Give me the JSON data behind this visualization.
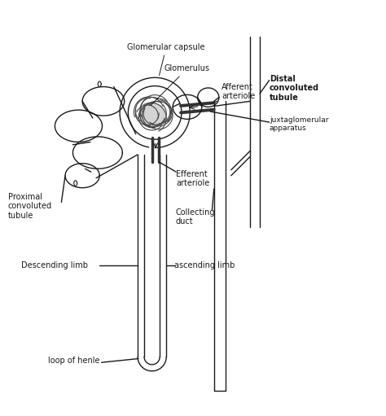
{
  "bg_color": "#ffffff",
  "line_color": "#1a1a1a",
  "figsize": [
    4.74,
    5.11
  ],
  "dpi": 100,
  "labels": {
    "glomerular_capsule": "Glomerular capsule",
    "glomerulus": "Glomerulus",
    "afferent_arteriole": "Afferent\narteriole",
    "distal_convoluted_tubule": "Distal\nconvoluted\ntubule",
    "juxtaglomerular": "juxtaglomerular\napparatus",
    "efferent_arteriole": "Efferent\narteriole",
    "collecting_duct": "Collecting\nduct",
    "proximal_convoluted_tubule": "Proximal\nconvoluted\ntubule",
    "descending_limb": "Descending limb",
    "ascending_limb": "ascending limb",
    "loop_of_henle": "loop of henle"
  }
}
